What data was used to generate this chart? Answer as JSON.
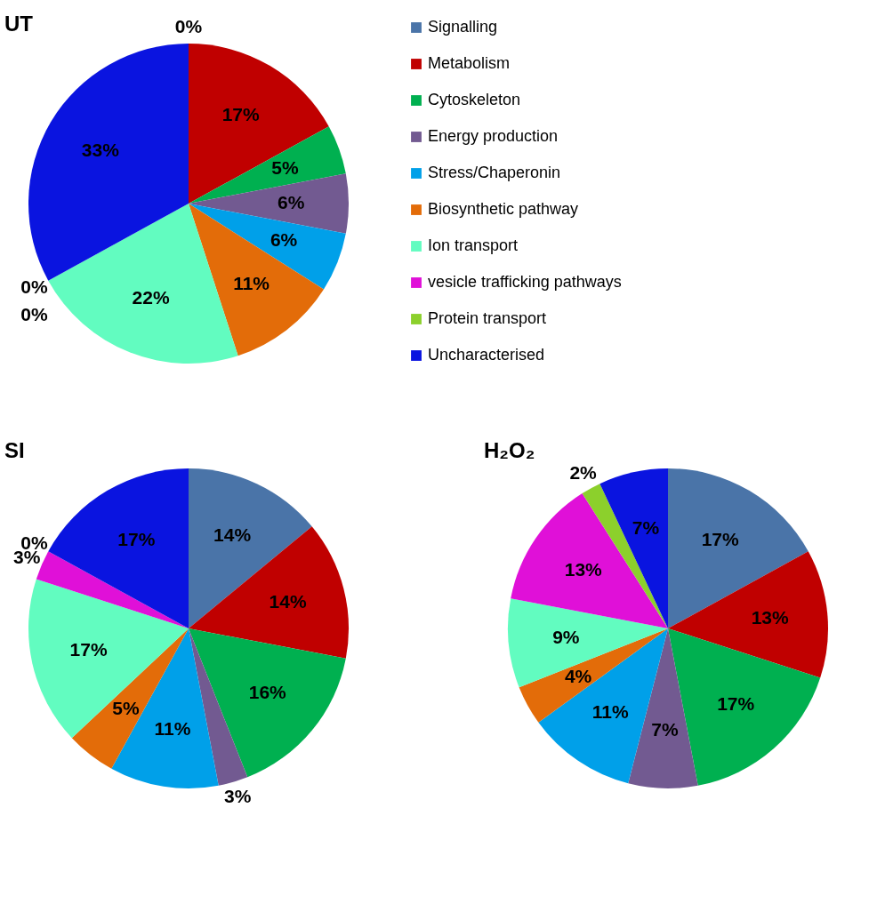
{
  "chart_data": [
    {
      "type": "pie",
      "title": "UT",
      "categories": [
        "Signalling",
        "Metabolism",
        "Cytoskeleton",
        "Energy production",
        "Stress/Chaperonin",
        "Biosynthetic pathway",
        "Ion transport",
        "vesicle trafficking pathways",
        "Protein transport",
        "Uncharacterised"
      ],
      "values": [
        0,
        17,
        5,
        6,
        6,
        11,
        22,
        0,
        0,
        33
      ],
      "value_labels": [
        "0%",
        "17%",
        "5%",
        "6%",
        "6%",
        "11%",
        "22%",
        "0%",
        "0%",
        "33%"
      ],
      "colors": [
        "#4a74a8",
        "#c00000",
        "#00b050",
        "#725a91",
        "#00a0e9",
        "#e36c09",
        "#62fcc0",
        "#e010d8",
        "#8cd02c",
        "#0a14e0"
      ],
      "legend": "right"
    },
    {
      "type": "pie",
      "title": "SI",
      "categories": [
        null,
        null,
        null,
        null,
        null,
        null,
        null,
        null,
        null,
        null
      ],
      "values": [
        14,
        14,
        16,
        3,
        11,
        5,
        17,
        3,
        0,
        17
      ],
      "value_labels": [
        "14%",
        "14%",
        "16%",
        "3%",
        "11%",
        "5%",
        "17%",
        "3%",
        "0%",
        "17%"
      ],
      "colors": [
        "#4a74a8",
        "#c00000",
        "#00b050",
        "#725a91",
        "#00a0e9",
        "#e36c09",
        "#62fcc0",
        "#e010d8",
        "#8cd02c",
        "#0a14e0"
      ]
    },
    {
      "type": "pie",
      "title": "H₂O₂",
      "categories": [
        null,
        null,
        null,
        null,
        null,
        null,
        null,
        null,
        null,
        null
      ],
      "values": [
        17,
        13,
        17,
        7,
        11,
        4,
        9,
        13,
        2,
        7
      ],
      "value_labels": [
        "17%",
        "13%",
        "17%",
        "7%",
        "11%",
        "4%",
        "9%",
        "13%",
        "2%",
        "7%"
      ],
      "colors": [
        "#4a74a8",
        "#c00000",
        "#00b050",
        "#725a91",
        "#00a0e9",
        "#e36c09",
        "#62fcc0",
        "#e010d8",
        "#8cd02c",
        "#0a14e0"
      ]
    }
  ]
}
